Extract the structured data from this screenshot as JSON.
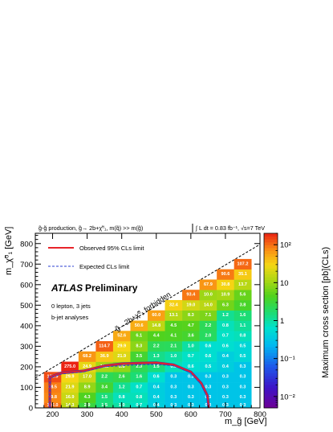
{
  "header": {
    "production": "g̃-g̃ production, g̃→ 2b+χ̃⁰₁, m(q̃) >> m(g̃)",
    "lumi": "∫ L dt = 0.83 fb⁻¹, √s=7 TeV"
  },
  "legend": {
    "observed": "Observed 95% CLs limit",
    "expected": "Expected CLs limit"
  },
  "labels": {
    "atlas": "ATLAS",
    "preliminary": "Preliminary",
    "selection": "0 lepton, 3 jets",
    "analyses": "b-jet analyses",
    "forbidden": "g̃→2b+χ̃⁰₁ forbidden"
  },
  "colors": {
    "observed": "#e8242a",
    "expected": "#2b3fd0",
    "observed_frame": "#6b2a8a"
  },
  "chart_data": {
    "type": "heatmap",
    "xlabel": "m_g̃ [GeV]",
    "ylabel": "m_χ̃⁰₁ [GeV]",
    "zlabel": "Maximum cross section [pb](CLs)",
    "xlim": [
      150,
      800
    ],
    "ylim": [
      0,
      850
    ],
    "zlim": [
      0.005,
      200
    ],
    "z_log": true,
    "x_ticks": [
      200,
      300,
      400,
      500,
      600,
      700,
      800
    ],
    "y_ticks": [
      0,
      100,
      200,
      300,
      400,
      500,
      600,
      700,
      800
    ],
    "z_ticks": [
      {
        "v": 0.01,
        "t": "10⁻²"
      },
      {
        "v": 0.1,
        "t": "10⁻¹"
      },
      {
        "v": 1,
        "t": "1"
      },
      {
        "v": 10,
        "t": "10"
      },
      {
        "v": 100,
        "t": "10²"
      }
    ],
    "bin": {
      "dx": 50,
      "dy": 50
    },
    "cells": [
      [
        200,
        0,
        102.0
      ],
      [
        250,
        0,
        14.3
      ],
      [
        300,
        0,
        2.9
      ],
      [
        350,
        0,
        1.5
      ],
      [
        400,
        0,
        1.0
      ],
      [
        450,
        0,
        0.7
      ],
      [
        500,
        0,
        0.4
      ],
      [
        550,
        0,
        0.3
      ],
      [
        600,
        0,
        0.3
      ],
      [
        650,
        0,
        0.3
      ],
      [
        700,
        0,
        0.3
      ],
      [
        750,
        0,
        0.3
      ],
      [
        200,
        50,
        79.8
      ],
      [
        250,
        50,
        16.9
      ],
      [
        300,
        50,
        4.3
      ],
      [
        350,
        50,
        1.5
      ],
      [
        400,
        50,
        0.8
      ],
      [
        450,
        50,
        0.8
      ],
      [
        500,
        50,
        0.4
      ],
      [
        550,
        50,
        0.3
      ],
      [
        600,
        50,
        0.3
      ],
      [
        650,
        50,
        0.3
      ],
      [
        700,
        50,
        0.3
      ],
      [
        750,
        50,
        0.3
      ],
      [
        200,
        100,
        88.5
      ],
      [
        250,
        100,
        21.9
      ],
      [
        300,
        100,
        8.9
      ],
      [
        350,
        100,
        3.4
      ],
      [
        400,
        100,
        1.2
      ],
      [
        450,
        100,
        0.7
      ],
      [
        500,
        100,
        0.4
      ],
      [
        550,
        100,
        0.3
      ],
      [
        600,
        100,
        0.3
      ],
      [
        650,
        100,
        0.3
      ],
      [
        700,
        100,
        0.3
      ],
      [
        750,
        100,
        0.3
      ],
      [
        200,
        150,
        136.9
      ],
      [
        250,
        150,
        29.9
      ],
      [
        300,
        150,
        17.0
      ],
      [
        350,
        150,
        2.2
      ],
      [
        400,
        150,
        2.6
      ],
      [
        450,
        150,
        1.6
      ],
      [
        500,
        150,
        0.6
      ],
      [
        550,
        150,
        0.3
      ],
      [
        600,
        150,
        0.3
      ],
      [
        650,
        150,
        0.3
      ],
      [
        700,
        150,
        0.3
      ],
      [
        750,
        150,
        0.3
      ],
      [
        250,
        200,
        275.0
      ],
      [
        300,
        200,
        24.9
      ],
      [
        350,
        200,
        11.2
      ],
      [
        400,
        200,
        8.8
      ],
      [
        450,
        200,
        2.3
      ],
      [
        500,
        200,
        1.5
      ],
      [
        550,
        200,
        0.8
      ],
      [
        600,
        200,
        0.6
      ],
      [
        650,
        200,
        0.5
      ],
      [
        700,
        200,
        0.4
      ],
      [
        750,
        200,
        0.3
      ],
      [
        300,
        250,
        68.2
      ],
      [
        350,
        250,
        36.9
      ],
      [
        400,
        250,
        21.9
      ],
      [
        450,
        250,
        3.5
      ],
      [
        500,
        250,
        1.3
      ],
      [
        550,
        250,
        1.0
      ],
      [
        600,
        250,
        0.7
      ],
      [
        650,
        250,
        0.6
      ],
      [
        700,
        250,
        0.4
      ],
      [
        750,
        250,
        0.5
      ],
      [
        350,
        300,
        114.7
      ],
      [
        400,
        300,
        29.9
      ],
      [
        450,
        300,
        8.3
      ],
      [
        500,
        300,
        2.2
      ],
      [
        550,
        300,
        2.1
      ],
      [
        600,
        300,
        1.0
      ],
      [
        650,
        300,
        0.6
      ],
      [
        700,
        300,
        0.6
      ],
      [
        750,
        300,
        0.5
      ],
      [
        400,
        350,
        52.6
      ],
      [
        450,
        350,
        6.1
      ],
      [
        500,
        350,
        4.4
      ],
      [
        550,
        350,
        4.1
      ],
      [
        600,
        350,
        3.6
      ],
      [
        650,
        350,
        2.0
      ],
      [
        700,
        350,
        0.7
      ],
      [
        750,
        350,
        0.8
      ],
      [
        450,
        400,
        50.6
      ],
      [
        500,
        400,
        14.8
      ],
      [
        550,
        400,
        4.5
      ],
      [
        600,
        400,
        4.7
      ],
      [
        650,
        400,
        2.2
      ],
      [
        700,
        400,
        0.8
      ],
      [
        750,
        400,
        1.1
      ],
      [
        500,
        450,
        60.0
      ],
      [
        550,
        450,
        13.1
      ],
      [
        600,
        450,
        8.3
      ],
      [
        650,
        450,
        7.1
      ],
      [
        700,
        450,
        1.2
      ],
      [
        750,
        450,
        1.6
      ],
      [
        550,
        500,
        32.4
      ],
      [
        600,
        500,
        19.0
      ],
      [
        650,
        500,
        14.0
      ],
      [
        700,
        500,
        6.3
      ],
      [
        750,
        500,
        3.8
      ],
      [
        600,
        550,
        93.4
      ],
      [
        650,
        550,
        10.0
      ],
      [
        700,
        550,
        10.9
      ],
      [
        750,
        550,
        5.6
      ],
      [
        650,
        600,
        67.9
      ],
      [
        700,
        600,
        30.8
      ],
      [
        750,
        600,
        13.7
      ],
      [
        700,
        650,
        90.6
      ],
      [
        750,
        650,
        35.1
      ],
      [
        750,
        700,
        107.2
      ]
    ],
    "observed_limit": [
      [
        192,
        0
      ],
      [
        192,
        150
      ],
      [
        225,
        170
      ],
      [
        290,
        180
      ],
      [
        350,
        205
      ],
      [
        400,
        215
      ],
      [
        450,
        218
      ],
      [
        500,
        220
      ],
      [
        550,
        210
      ],
      [
        600,
        175
      ],
      [
        630,
        120
      ],
      [
        648,
        60
      ],
      [
        652,
        0
      ]
    ],
    "expected_limit": [
      [
        192,
        0
      ],
      [
        192,
        145
      ],
      [
        225,
        165
      ],
      [
        290,
        175
      ],
      [
        350,
        200
      ],
      [
        400,
        205
      ],
      [
        450,
        210
      ],
      [
        500,
        212
      ],
      [
        550,
        205
      ],
      [
        600,
        170
      ],
      [
        628,
        118
      ],
      [
        645,
        60
      ],
      [
        650,
        0
      ]
    ],
    "kinematic_line": [
      [
        150,
        146
      ],
      [
        800,
        796
      ]
    ]
  }
}
